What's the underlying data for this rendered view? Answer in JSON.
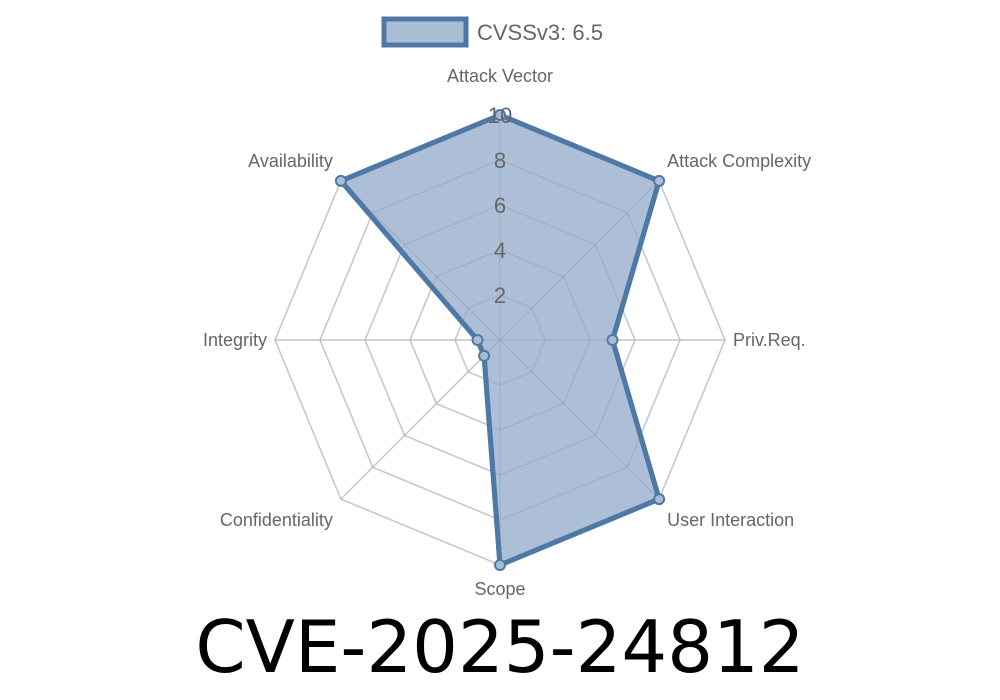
{
  "chart_data": {
    "type": "radar",
    "title": "CVE-2025-24812",
    "axes": [
      "Attack Vector",
      "Attack Complexity",
      "Priv.Req.",
      "User Interaction",
      "Scope",
      "Confidentiality",
      "Integrity",
      "Availability"
    ],
    "ticks": [
      "2",
      "4",
      "6",
      "8",
      "10"
    ],
    "rmax": 10,
    "grid": true,
    "legend_position": "top",
    "series": [
      {
        "name": "CVSSv3: 6.5",
        "values": [
          10,
          10,
          5,
          10,
          10,
          1,
          1,
          10
        ]
      }
    ],
    "colors": {
      "line": "#4e79a7",
      "fill": "#a8bcd4",
      "grid": "#dddddd"
    }
  }
}
